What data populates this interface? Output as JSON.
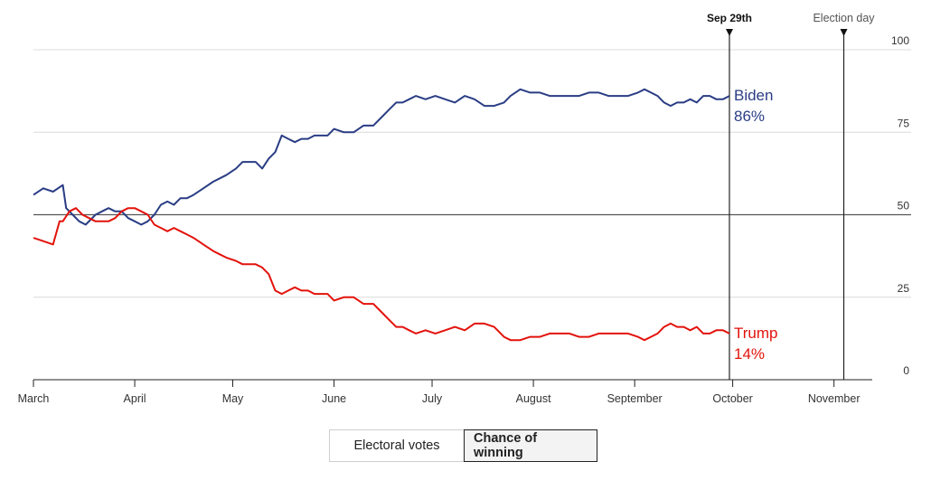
{
  "chart_data": {
    "type": "line",
    "title": "Chance of winning",
    "ylim": [
      0,
      100
    ],
    "y_ticks": [
      "0",
      "25",
      "50",
      "75",
      "100"
    ],
    "months": [
      "March",
      "April",
      "May",
      "June",
      "July",
      "August",
      "September",
      "October",
      "November"
    ],
    "markers": [
      {
        "label": "Sep 29th",
        "day": 213
      },
      {
        "label": "Election day",
        "day": 248
      }
    ],
    "series": [
      {
        "name": "Biden",
        "color": "#2a3d84",
        "end_label": "Biden",
        "end_value": "86%",
        "points": [
          [
            0,
            56
          ],
          [
            3,
            58
          ],
          [
            6,
            57
          ],
          [
            9,
            59
          ],
          [
            10,
            52
          ],
          [
            12,
            50
          ],
          [
            14,
            48
          ],
          [
            16,
            47
          ],
          [
            19,
            50
          ],
          [
            21,
            51
          ],
          [
            23,
            52
          ],
          [
            25,
            51
          ],
          [
            27,
            51
          ],
          [
            29,
            49
          ],
          [
            31,
            48
          ],
          [
            33,
            47
          ],
          [
            35,
            48
          ],
          [
            37,
            50
          ],
          [
            39,
            53
          ],
          [
            41,
            54
          ],
          [
            43,
            53
          ],
          [
            45,
            55
          ],
          [
            47,
            55
          ],
          [
            49,
            56
          ],
          [
            52,
            58
          ],
          [
            55,
            60
          ],
          [
            57,
            61
          ],
          [
            59,
            62
          ],
          [
            62,
            64
          ],
          [
            64,
            66
          ],
          [
            66,
            66
          ],
          [
            68,
            66
          ],
          [
            70,
            64
          ],
          [
            72,
            67
          ],
          [
            74,
            69
          ],
          [
            76,
            74
          ],
          [
            78,
            73
          ],
          [
            80,
            72
          ],
          [
            82,
            73
          ],
          [
            84,
            73
          ],
          [
            86,
            74
          ],
          [
            88,
            74
          ],
          [
            90,
            74
          ],
          [
            92,
            76
          ],
          [
            95,
            75
          ],
          [
            98,
            75
          ],
          [
            101,
            77
          ],
          [
            104,
            77
          ],
          [
            107,
            80
          ],
          [
            109,
            82
          ],
          [
            111,
            84
          ],
          [
            113,
            84
          ],
          [
            115,
            85
          ],
          [
            117,
            86
          ],
          [
            120,
            85
          ],
          [
            123,
            86
          ],
          [
            126,
            85
          ],
          [
            129,
            84
          ],
          [
            132,
            86
          ],
          [
            135,
            85
          ],
          [
            138,
            83
          ],
          [
            141,
            83
          ],
          [
            144,
            84
          ],
          [
            146,
            86
          ],
          [
            149,
            88
          ],
          [
            152,
            87
          ],
          [
            155,
            87
          ],
          [
            158,
            86
          ],
          [
            161,
            86
          ],
          [
            164,
            86
          ],
          [
            167,
            86
          ],
          [
            170,
            87
          ],
          [
            173,
            87
          ],
          [
            176,
            86
          ],
          [
            179,
            86
          ],
          [
            182,
            86
          ],
          [
            185,
            87
          ],
          [
            187,
            88
          ],
          [
            189,
            87
          ],
          [
            191,
            86
          ],
          [
            193,
            84
          ],
          [
            195,
            83
          ],
          [
            197,
            84
          ],
          [
            199,
            84
          ],
          [
            201,
            85
          ],
          [
            203,
            84
          ],
          [
            205,
            86
          ],
          [
            207,
            86
          ],
          [
            209,
            85
          ],
          [
            211,
            85
          ],
          [
            213,
            86
          ]
        ]
      },
      {
        "name": "Trump",
        "color": "#e3120b",
        "end_label": "Trump",
        "end_value": "14%",
        "points": [
          [
            0,
            43
          ],
          [
            3,
            42
          ],
          [
            6,
            41
          ],
          [
            8,
            48
          ],
          [
            9,
            48
          ],
          [
            11,
            51
          ],
          [
            13,
            52
          ],
          [
            15,
            50
          ],
          [
            17,
            49
          ],
          [
            19,
            48
          ],
          [
            21,
            48
          ],
          [
            23,
            48
          ],
          [
            25,
            49
          ],
          [
            27,
            51
          ],
          [
            29,
            52
          ],
          [
            31,
            52
          ],
          [
            33,
            51
          ],
          [
            35,
            50
          ],
          [
            37,
            47
          ],
          [
            39,
            46
          ],
          [
            41,
            45
          ],
          [
            43,
            46
          ],
          [
            45,
            45
          ],
          [
            47,
            44
          ],
          [
            49,
            43
          ],
          [
            52,
            41
          ],
          [
            55,
            39
          ],
          [
            57,
            38
          ],
          [
            59,
            37
          ],
          [
            62,
            36
          ],
          [
            64,
            35
          ],
          [
            66,
            35
          ],
          [
            68,
            35
          ],
          [
            70,
            34
          ],
          [
            72,
            32
          ],
          [
            74,
            27
          ],
          [
            76,
            26
          ],
          [
            78,
            27
          ],
          [
            80,
            28
          ],
          [
            82,
            27
          ],
          [
            84,
            27
          ],
          [
            86,
            26
          ],
          [
            88,
            26
          ],
          [
            90,
            26
          ],
          [
            92,
            24
          ],
          [
            95,
            25
          ],
          [
            98,
            25
          ],
          [
            101,
            23
          ],
          [
            104,
            23
          ],
          [
            107,
            20
          ],
          [
            109,
            18
          ],
          [
            111,
            16
          ],
          [
            113,
            16
          ],
          [
            115,
            15
          ],
          [
            117,
            14
          ],
          [
            120,
            15
          ],
          [
            123,
            14
          ],
          [
            126,
            15
          ],
          [
            129,
            16
          ],
          [
            132,
            15
          ],
          [
            135,
            17
          ],
          [
            138,
            17
          ],
          [
            141,
            16
          ],
          [
            144,
            13
          ],
          [
            146,
            12
          ],
          [
            149,
            12
          ],
          [
            152,
            13
          ],
          [
            155,
            13
          ],
          [
            158,
            14
          ],
          [
            161,
            14
          ],
          [
            164,
            14
          ],
          [
            167,
            13
          ],
          [
            170,
            13
          ],
          [
            173,
            14
          ],
          [
            176,
            14
          ],
          [
            179,
            14
          ],
          [
            182,
            14
          ],
          [
            185,
            13
          ],
          [
            187,
            12
          ],
          [
            189,
            13
          ],
          [
            191,
            14
          ],
          [
            193,
            16
          ],
          [
            195,
            17
          ],
          [
            197,
            16
          ],
          [
            199,
            16
          ],
          [
            201,
            15
          ],
          [
            203,
            16
          ],
          [
            205,
            14
          ],
          [
            207,
            14
          ],
          [
            209,
            15
          ],
          [
            211,
            15
          ],
          [
            213,
            14
          ]
        ]
      }
    ]
  },
  "toggle": {
    "electoral_label": "Electoral votes",
    "chance_label": "Chance of winning"
  }
}
